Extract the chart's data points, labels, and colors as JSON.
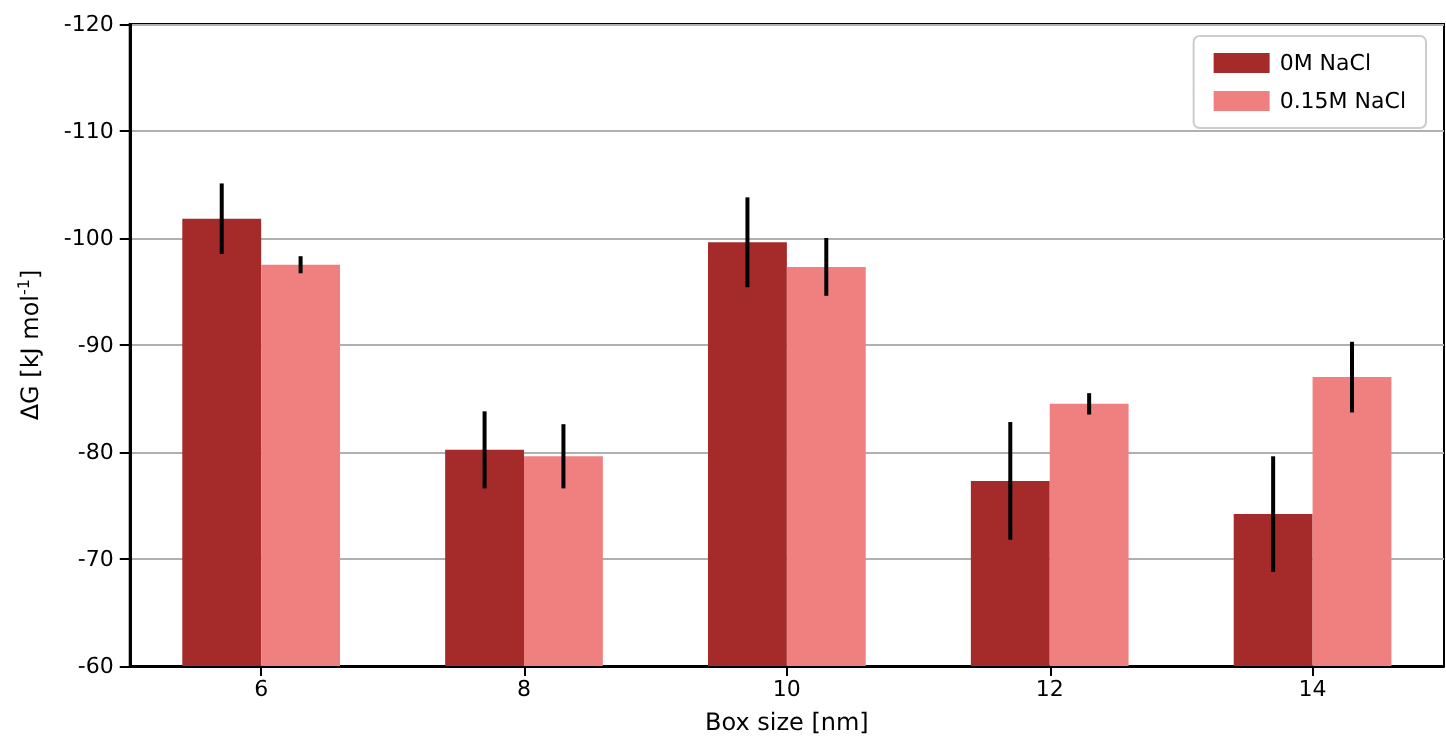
{
  "chart_data": {
    "type": "bar",
    "xlabel": "Box size [nm]",
    "ylabel": "ΔG [kJ mol$^{-1}$]",
    "categories": [
      "6",
      "8",
      "10",
      "12",
      "14"
    ],
    "series": [
      {
        "name": "0M NaCl",
        "color": "#a52a2a",
        "values": [
          -101.8,
          -80.2,
          -99.6,
          -77.3,
          -74.2
        ],
        "errors": [
          3.3,
          3.6,
          4.2,
          5.5,
          5.4
        ]
      },
      {
        "name": "0.15M NaCl",
        "color": "#f08080",
        "values": [
          -97.5,
          -79.6,
          -97.3,
          -84.5,
          -87.0
        ],
        "errors": [
          0.8,
          3.0,
          2.7,
          1.0,
          3.3
        ]
      }
    ],
    "ylim": [
      -60,
      -120
    ],
    "yticks": [
      -60,
      -70,
      -80,
      -90,
      -100,
      -110,
      -120
    ],
    "grid": "y",
    "legend": "top right"
  }
}
